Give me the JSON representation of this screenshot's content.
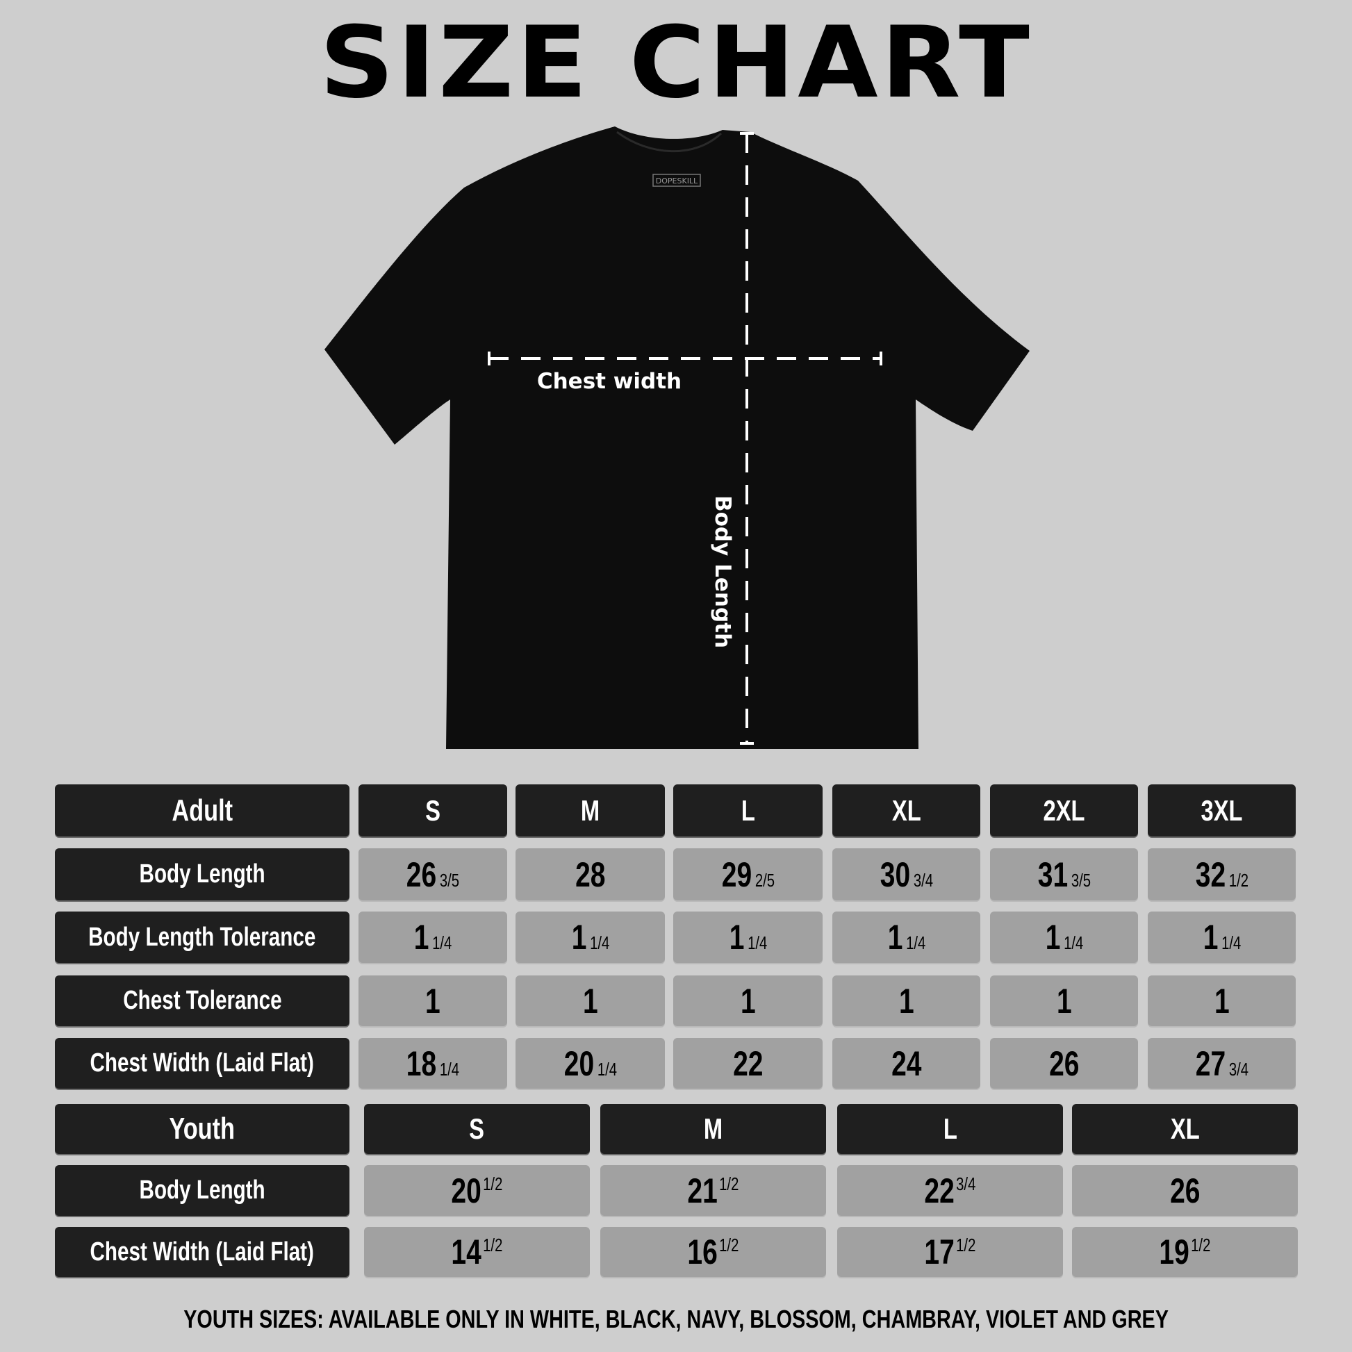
{
  "title": "SIZE CHART",
  "diagram": {
    "brand_tag": "DOPESKILL",
    "chest_label": "Chest width",
    "body_label": "Body Length",
    "shirt_color": "#0d0d0d"
  },
  "adult": {
    "header": "Adult",
    "sizes": [
      "S",
      "M",
      "L",
      "XL",
      "2XL",
      "3XL"
    ],
    "rows": [
      {
        "label": "Body Length",
        "values": [
          {
            "whole": "26",
            "frac": "3/5"
          },
          {
            "whole": "28",
            "frac": ""
          },
          {
            "whole": "29",
            "frac": "2/5"
          },
          {
            "whole": "30",
            "frac": "3/4"
          },
          {
            "whole": "31",
            "frac": "3/5"
          },
          {
            "whole": "32",
            "frac": "1/2"
          }
        ]
      },
      {
        "label": "Body Length Tolerance",
        "values": [
          {
            "whole": "1",
            "frac": "1/4"
          },
          {
            "whole": "1",
            "frac": "1/4"
          },
          {
            "whole": "1",
            "frac": "1/4"
          },
          {
            "whole": "1",
            "frac": "1/4"
          },
          {
            "whole": "1",
            "frac": "1/4"
          },
          {
            "whole": "1",
            "frac": "1/4"
          }
        ]
      },
      {
        "label": "Chest Tolerance",
        "values": [
          {
            "whole": "1",
            "frac": ""
          },
          {
            "whole": "1",
            "frac": ""
          },
          {
            "whole": "1",
            "frac": ""
          },
          {
            "whole": "1",
            "frac": ""
          },
          {
            "whole": "1",
            "frac": ""
          },
          {
            "whole": "1",
            "frac": ""
          }
        ]
      },
      {
        "label": "Chest Width (Laid Flat)",
        "values": [
          {
            "whole": "18",
            "frac": "1/4"
          },
          {
            "whole": "20",
            "frac": "1/4"
          },
          {
            "whole": "22",
            "frac": ""
          },
          {
            "whole": "24",
            "frac": ""
          },
          {
            "whole": "26",
            "frac": ""
          },
          {
            "whole": "27",
            "frac": "3/4"
          }
        ]
      }
    ]
  },
  "youth": {
    "header": "Youth",
    "sizes": [
      "S",
      "M",
      "L",
      "XL"
    ],
    "rows": [
      {
        "label": "Body Length",
        "values": [
          {
            "whole": "20",
            "frac": "1/2"
          },
          {
            "whole": "21",
            "frac": "1/2"
          },
          {
            "whole": "22",
            "frac": "3/4"
          },
          {
            "whole": "26",
            "frac": ""
          }
        ]
      },
      {
        "label": "Chest Width (Laid Flat)",
        "values": [
          {
            "whole": "14",
            "frac": "1/2"
          },
          {
            "whole": "16",
            "frac": "1/2"
          },
          {
            "whole": "17",
            "frac": "1/2"
          },
          {
            "whole": "19",
            "frac": "1/2"
          }
        ]
      }
    ]
  },
  "footer": "YOUTH SIZES: AVAILABLE ONLY IN WHITE, BLACK, NAVY, BLOSSOM, CHAMBRAY, VIOLET AND GREY",
  "colors": {
    "background": "#cecece",
    "header_cell": "#1f1f1f",
    "value_cell": "#a1a1a1"
  }
}
